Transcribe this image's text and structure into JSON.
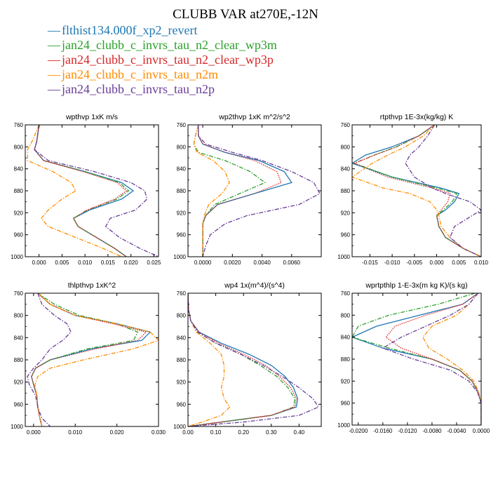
{
  "title": "CLUBB VAR at270E,-12N",
  "legend": [
    {
      "label": "flthist134.000f_xp2_revert",
      "color": "#1f77b4",
      "dash": "solid"
    },
    {
      "label": "jan24_clubb_c_invrs_tau_n2_clear_wp3m",
      "color": "#2ca02c",
      "dash": "dashdot"
    },
    {
      "label": "jan24_clubb_c_invrs_tau_n2_clear_wp3p",
      "color": "#d62728",
      "dash": "dot"
    },
    {
      "label": "jan24_clubb_c_invrs_tau_n2m",
      "color": "#ff8c00",
      "dash": "dashdot"
    },
    {
      "label": "jan24_clubb_c_invrs_tau_n2p",
      "color": "#6a3d9a",
      "dash": "dashdot"
    }
  ],
  "chart_data": [
    {
      "type": "line",
      "title": "wpthvp  1xK m/s",
      "xlim": [
        -0.003,
        0.026
      ],
      "ylim": [
        760,
        1000
      ],
      "xticks": [
        0.0,
        0.005,
        0.01,
        0.015,
        0.02,
        0.025
      ],
      "xtick_labels": [
        "0.000",
        "0.005",
        "0.010",
        "0.015",
        "0.020",
        "0.025"
      ],
      "yticks": [
        760,
        800,
        840,
        880,
        920,
        960,
        1000
      ],
      "ytick_labels": [
        "760",
        "800",
        "840",
        "880",
        "920",
        "960",
        "1000"
      ],
      "y": [
        760,
        790,
        805,
        825,
        845,
        865,
        880,
        895,
        915,
        930,
        945,
        965,
        985,
        1000
      ],
      "series": [
        {
          "name": "flthist134.000f_xp2_revert",
          "values": [
            0.0,
            -0.0005,
            -0.001,
            0.001,
            0.01,
            0.018,
            0.0205,
            0.018,
            0.011,
            0.0075,
            0.0085,
            0.0125,
            0.0165,
            0.019
          ]
        },
        {
          "name": "jan24_clubb_c_invrs_tau_n2_clear_wp3m",
          "values": [
            0.0,
            -0.0005,
            -0.001,
            0.001,
            0.01,
            0.0175,
            0.0195,
            0.017,
            0.0105,
            0.0075,
            0.0085,
            0.0125,
            0.0165,
            0.019
          ]
        },
        {
          "name": "jan24_clubb_c_invrs_tau_n2_clear_wp3p",
          "values": [
            0.0,
            -0.0005,
            -0.001,
            0.001,
            0.0095,
            0.017,
            0.019,
            0.0165,
            0.0105,
            0.0075,
            0.0085,
            0.0125,
            0.0165,
            0.019
          ]
        },
        {
          "name": "jan24_clubb_c_invrs_tau_n2m",
          "values": [
            0.0,
            -0.0015,
            -0.0025,
            -0.0025,
            0.003,
            0.007,
            0.008,
            0.005,
            0.002,
            0.0005,
            0.002,
            0.008,
            0.014,
            0.018
          ]
        },
        {
          "name": "jan24_clubb_c_invrs_tau_n2p",
          "values": [
            0.0,
            -0.0005,
            -0.001,
            0.002,
            0.012,
            0.02,
            0.023,
            0.0235,
            0.021,
            0.0155,
            0.0145,
            0.0175,
            0.022,
            0.026
          ]
        }
      ]
    },
    {
      "type": "line",
      "title": "wp2thvp  1xK m^2/s^2",
      "xlim": [
        -0.001,
        0.008
      ],
      "ylim": [
        760,
        1000
      ],
      "xticks": [
        0.0,
        0.002,
        0.004,
        0.006
      ],
      "xtick_labels": [
        "0.0000",
        "0.0020",
        "0.0040",
        "0.0060"
      ],
      "yticks": [
        760,
        800,
        840,
        880,
        920,
        960,
        1000
      ],
      "ytick_labels": [
        "760",
        "800",
        "840",
        "880",
        "920",
        "960",
        "1000"
      ],
      "y": [
        760,
        780,
        795,
        810,
        825,
        845,
        865,
        885,
        905,
        925,
        940,
        960,
        980,
        1000
      ],
      "series": [
        {
          "name": "flthist134.000f_xp2_revert",
          "values": [
            -0.0003,
            -0.0003,
            0.0,
            0.0015,
            0.0038,
            0.0055,
            0.006,
            0.0035,
            0.001,
            0.0002,
            0.0,
            0.0,
            0.0,
            0.0
          ]
        },
        {
          "name": "jan24_clubb_c_invrs_tau_n2_clear_wp3m",
          "values": [
            -0.0003,
            -0.0005,
            -0.0006,
            -0.0003,
            0.0015,
            0.0032,
            0.0042,
            0.0025,
            0.0008,
            0.0002,
            0.0,
            0.0,
            0.0,
            0.0
          ]
        },
        {
          "name": "jan24_clubb_c_invrs_tau_n2_clear_wp3p",
          "values": [
            -0.0003,
            -0.0003,
            0.0,
            0.0015,
            0.0035,
            0.005,
            0.0053,
            0.0035,
            0.001,
            0.0002,
            0.0,
            0.0,
            0.0,
            0.0
          ]
        },
        {
          "name": "jan24_clubb_c_invrs_tau_n2m",
          "values": [
            -0.0003,
            -0.0005,
            -0.0006,
            -0.0004,
            0.0007,
            0.0015,
            0.0018,
            0.0013,
            0.0004,
            0.0001,
            0.0,
            0.0,
            0.0,
            0.0
          ]
        },
        {
          "name": "jan24_clubb_c_invrs_tau_n2p",
          "values": [
            -0.0003,
            -0.0003,
            0.0002,
            0.002,
            0.004,
            0.006,
            0.0075,
            0.0079,
            0.0065,
            0.003,
            0.0015,
            0.0005,
            0.0002,
            0.0
          ]
        }
      ]
    },
    {
      "type": "line",
      "title": "rtpthvp  1E-3x(kg/kg) K",
      "xlim": [
        -0.019,
        0.01
      ],
      "ylim": [
        760,
        1000
      ],
      "xticks": [
        -0.015,
        -0.01,
        -0.005,
        0.0,
        0.005,
        0.01
      ],
      "xtick_labels": [
        "-0.015",
        "-0.010",
        "-0.005",
        "0.000",
        "0.005",
        "0.010"
      ],
      "yticks": [
        760,
        800,
        840,
        880,
        920,
        960,
        1000
      ],
      "ytick_labels": [
        "760",
        "800",
        "840",
        "880",
        "920",
        "960",
        "1000"
      ],
      "y": [
        760,
        780,
        800,
        815,
        830,
        855,
        875,
        885,
        900,
        915,
        925,
        945,
        965,
        985,
        1000
      ],
      "series": [
        {
          "name": "flthist134.000f_xp2_revert",
          "values": [
            -0.0005,
            -0.004,
            -0.01,
            -0.016,
            -0.019,
            -0.01,
            0.001,
            0.005,
            0.004,
            0.002,
            0.0,
            0.0005,
            0.002,
            0.006,
            0.01
          ]
        },
        {
          "name": "jan24_clubb_c_invrs_tau_n2_clear_wp3m",
          "values": [
            -0.0005,
            -0.004,
            -0.009,
            -0.014,
            -0.0185,
            -0.01,
            0.0,
            0.0045,
            0.0035,
            0.0015,
            0.0,
            0.0005,
            0.002,
            0.006,
            0.01
          ]
        },
        {
          "name": "jan24_clubb_c_invrs_tau_n2_clear_wp3p",
          "values": [
            -0.0005,
            -0.004,
            -0.009,
            -0.014,
            -0.0185,
            -0.011,
            -0.001,
            0.003,
            0.0025,
            0.001,
            0.0,
            0.0005,
            0.002,
            0.006,
            0.01
          ]
        },
        {
          "name": "jan24_clubb_c_invrs_tau_n2m",
          "values": [
            -0.0005,
            -0.003,
            -0.007,
            -0.011,
            -0.0145,
            -0.019,
            -0.012,
            -0.006,
            -0.0015,
            0.0,
            0.0005,
            0.001,
            0.003,
            0.006,
            0.01
          ]
        },
        {
          "name": "jan24_clubb_c_invrs_tau_n2p",
          "values": [
            -0.0005,
            -0.002,
            -0.004,
            -0.006,
            -0.007,
            -0.005,
            -0.001,
            0.002,
            0.0075,
            0.01,
            0.008,
            0.004,
            0.003,
            0.006,
            0.01
          ]
        }
      ]
    },
    {
      "type": "line",
      "title": "thlpthvp  1xK^2",
      "xlim": [
        -0.002,
        0.03
      ],
      "ylim": [
        760,
        1000
      ],
      "xticks": [
        0.0,
        0.01,
        0.02,
        0.03
      ],
      "xtick_labels": [
        "0.000",
        "0.010",
        "0.020",
        "0.030"
      ],
      "yticks": [
        760,
        800,
        840,
        880,
        920,
        960,
        1000
      ],
      "ytick_labels": [
        "760",
        "800",
        "840",
        "880",
        "920",
        "960",
        "1000"
      ],
      "y": [
        760,
        780,
        800,
        815,
        830,
        845,
        860,
        880,
        895,
        910,
        925,
        945,
        965,
        985,
        1000
      ],
      "series": [
        {
          "name": "flthist134.000f_xp2_revert",
          "values": [
            0.001,
            0.004,
            0.01,
            0.02,
            0.028,
            0.026,
            0.014,
            0.004,
            0.0005,
            -0.0005,
            0.0,
            0.0008,
            0.001,
            0.0015,
            0.002
          ]
        },
        {
          "name": "jan24_clubb_c_invrs_tau_n2_clear_wp3m",
          "values": [
            0.001,
            0.005,
            0.011,
            0.02,
            0.025,
            0.024,
            0.013,
            0.004,
            0.0005,
            -0.0005,
            0.0,
            0.0008,
            0.001,
            0.0015,
            0.002
          ]
        },
        {
          "name": "jan24_clubb_c_invrs_tau_n2_clear_wp3p",
          "values": [
            0.001,
            0.004,
            0.01,
            0.019,
            0.027,
            0.025,
            0.015,
            0.004,
            0.0005,
            -0.0005,
            0.0,
            0.0008,
            0.001,
            0.0015,
            0.002
          ]
        },
        {
          "name": "jan24_clubb_c_invrs_tau_n2m",
          "values": [
            0.001,
            0.004,
            0.01,
            0.02,
            0.028,
            0.03,
            0.024,
            0.012,
            0.004,
            0.001,
            0.0003,
            0.0008,
            0.001,
            0.0015,
            0.002
          ]
        },
        {
          "name": "jan24_clubb_c_invrs_tau_n2p",
          "values": [
            0.001,
            0.002,
            0.005,
            0.008,
            0.009,
            0.007,
            0.004,
            0.002,
            0.0,
            -0.0015,
            -0.001,
            0.0005,
            0.001,
            0.002,
            0.004
          ]
        }
      ]
    },
    {
      "type": "line",
      "title": "wp4  1x(m^4)/(s^4)",
      "xlim": [
        0.0,
        0.48
      ],
      "ylim": [
        760,
        1000
      ],
      "xticks": [
        0.0,
        0.1,
        0.2,
        0.3,
        0.4
      ],
      "xtick_labels": [
        "0.00",
        "0.10",
        "0.20",
        "0.30",
        "0.40"
      ],
      "yticks": [
        760,
        800,
        840,
        880,
        920,
        960,
        1000
      ],
      "ytick_labels": [
        "760",
        "800",
        "840",
        "880",
        "920",
        "960",
        "1000"
      ],
      "y": [
        760,
        790,
        810,
        830,
        850,
        870,
        890,
        910,
        930,
        950,
        965,
        980,
        992,
        1000
      ],
      "series": [
        {
          "name": "flthist134.000f_xp2_revert",
          "values": [
            0.0,
            0.002,
            0.01,
            0.04,
            0.12,
            0.22,
            0.3,
            0.35,
            0.38,
            0.395,
            0.39,
            0.3,
            0.12,
            0.0
          ]
        },
        {
          "name": "jan24_clubb_c_invrs_tau_n2_clear_wp3m",
          "values": [
            0.0,
            0.002,
            0.01,
            0.035,
            0.1,
            0.19,
            0.26,
            0.32,
            0.36,
            0.385,
            0.38,
            0.3,
            0.12,
            0.0
          ]
        },
        {
          "name": "jan24_clubb_c_invrs_tau_n2_clear_wp3p",
          "values": [
            0.0,
            0.002,
            0.01,
            0.04,
            0.11,
            0.2,
            0.28,
            0.33,
            0.37,
            0.39,
            0.385,
            0.3,
            0.12,
            0.0
          ]
        },
        {
          "name": "jan24_clubb_c_invrs_tau_n2m",
          "values": [
            0.0,
            0.002,
            0.01,
            0.03,
            0.08,
            0.12,
            0.13,
            0.13,
            0.12,
            0.13,
            0.15,
            0.12,
            0.05,
            0.0
          ]
        },
        {
          "name": "jan24_clubb_c_invrs_tau_n2p",
          "values": [
            0.0,
            0.002,
            0.01,
            0.035,
            0.1,
            0.19,
            0.27,
            0.34,
            0.4,
            0.45,
            0.47,
            0.4,
            0.2,
            0.0
          ]
        }
      ]
    },
    {
      "type": "line",
      "title": "wprtpthlp  1-E-3x(m kg K)/(s kg)",
      "xlim": [
        -0.021,
        0.0
      ],
      "ylim": [
        760,
        1000
      ],
      "xticks": [
        -0.02,
        -0.016,
        -0.012,
        -0.008,
        -0.004,
        0.0
      ],
      "xtick_labels": [
        "-0.0200",
        "-0.0160",
        "-0.0120",
        "-0.0080",
        "-0.0040",
        "0.0000"
      ],
      "yticks": [
        760,
        800,
        840,
        880,
        920,
        960,
        1000
      ],
      "ytick_labels": [
        "760",
        "800",
        "840",
        "880",
        "920",
        "960",
        "1000"
      ],
      "y": [
        760,
        780,
        800,
        820,
        840,
        860,
        880,
        900,
        920,
        940,
        960,
        980,
        1000
      ],
      "series": [
        {
          "name": "flthist134.000f_xp2_revert",
          "values": [
            -0.0005,
            -0.003,
            -0.01,
            -0.017,
            -0.021,
            -0.016,
            -0.008,
            -0.0035,
            -0.0015,
            -0.0005,
            0.0,
            0.0,
            0.0
          ]
        },
        {
          "name": "jan24_clubb_c_invrs_tau_n2_clear_wp3m",
          "values": [
            -0.001,
            -0.007,
            -0.015,
            -0.02,
            -0.021,
            -0.015,
            -0.008,
            -0.0035,
            -0.0015,
            -0.0005,
            0.0,
            0.0,
            0.0
          ]
        },
        {
          "name": "jan24_clubb_c_invrs_tau_n2_clear_wp3p",
          "values": [
            -0.0005,
            -0.003,
            -0.009,
            -0.014,
            -0.0155,
            -0.013,
            -0.008,
            -0.0035,
            -0.0015,
            -0.0005,
            0.0,
            0.0,
            0.0
          ]
        },
        {
          "name": "jan24_clubb_c_invrs_tau_n2m",
          "values": [
            -0.0005,
            -0.002,
            -0.004,
            -0.008,
            -0.0095,
            -0.0085,
            -0.0055,
            -0.003,
            -0.0012,
            -0.0004,
            0.0,
            0.0,
            0.0
          ]
        },
        {
          "name": "jan24_clubb_c_invrs_tau_n2p",
          "values": [
            -0.0005,
            -0.002,
            -0.005,
            -0.009,
            -0.013,
            -0.016,
            -0.011,
            -0.005,
            -0.002,
            -0.0006,
            0.0,
            0.0,
            0.0
          ]
        }
      ]
    }
  ]
}
